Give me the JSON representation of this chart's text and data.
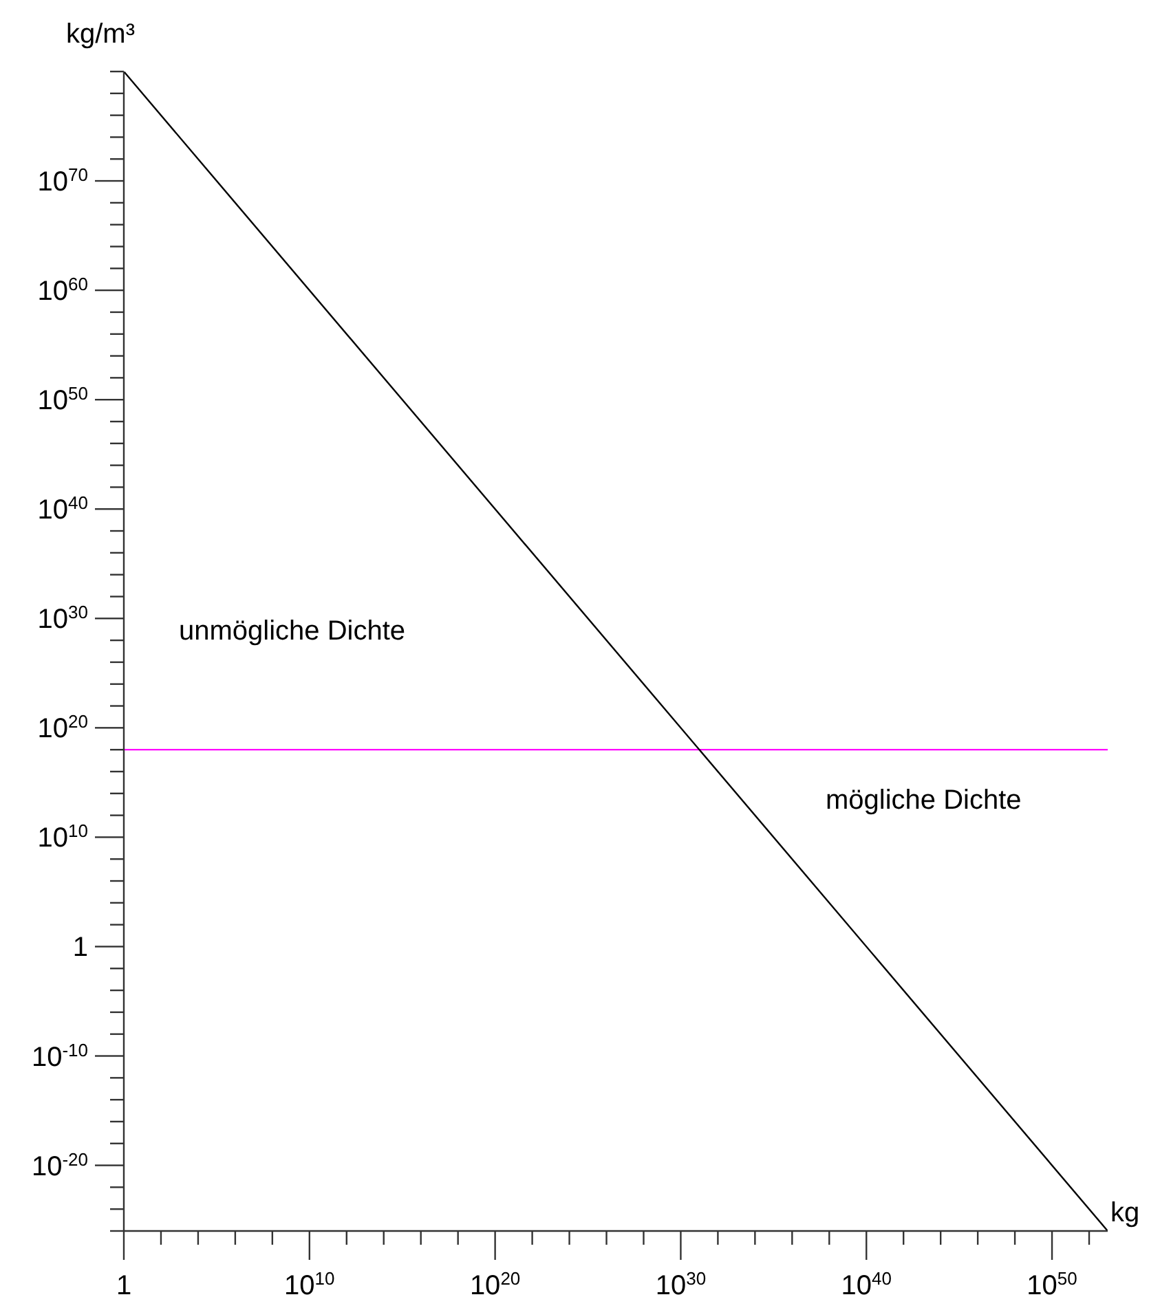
{
  "chart_data": {
    "type": "line",
    "xlabel": "kg",
    "ylabel": "kg/m³",
    "log": "xy",
    "grid": false,
    "legend": false,
    "marker": "none",
    "line_style": "solid",
    "series": [
      {
        "color": "#000000",
        "x": [
          1,
          1e+53
        ],
        "values": [
          1e+80,
          1e-26
        ]
      }
    ],
    "xlim": [
      1,
      1e+53
    ],
    "xticks": [
      {
        "value": 1,
        "label": "1"
      },
      {
        "value": 100.0,
        "label": null
      },
      {
        "value": 10000.0,
        "label": null
      },
      {
        "value": 1000000.0,
        "label": null
      },
      {
        "value": 100000000.0,
        "label": null
      },
      {
        "value": 10000000000.0,
        "label": "10$^{10}$"
      },
      {
        "value": 1000000000000.0,
        "label": null
      },
      {
        "value": 100000000000000.0,
        "label": null
      },
      {
        "value": 1e+16,
        "label": null
      },
      {
        "value": 1e+18,
        "label": null
      },
      {
        "value": 1e+20,
        "label": "10$^{20}$"
      },
      {
        "value": 1e+22,
        "label": null
      },
      {
        "value": 1e+24,
        "label": null
      },
      {
        "value": 1e+26,
        "label": null
      },
      {
        "value": 1e+28,
        "label": null
      },
      {
        "value": 1e+30,
        "label": "10$^{30}$"
      },
      {
        "value": 1e+32,
        "label": null
      },
      {
        "value": 1e+34,
        "label": null
      },
      {
        "value": 1e+36,
        "label": null
      },
      {
        "value": 1e+38,
        "label": null
      },
      {
        "value": 1e+40,
        "label": "10$^{40}$"
      },
      {
        "value": 1e+42,
        "label": null
      },
      {
        "value": 1e+44,
        "label": null
      },
      {
        "value": 1e+46,
        "label": null
      },
      {
        "value": 1e+48,
        "label": null
      },
      {
        "value": 1e+50,
        "label": "10$^{50}$"
      },
      {
        "value": 1e+52,
        "label": null
      }
    ],
    "ylim": [
      1e-26,
      1e+80
    ],
    "yticks": [
      {
        "value": 1e-26,
        "label": null
      },
      {
        "value": 1e-24,
        "label": null
      },
      {
        "value": 1e-22,
        "label": null
      },
      {
        "value": 1e-20,
        "label": "10$^{-20}$"
      },
      {
        "value": 1e-18,
        "label": null
      },
      {
        "value": 1e-16,
        "label": null
      },
      {
        "value": 1e-14,
        "label": null
      },
      {
        "value": 1e-12,
        "label": null
      },
      {
        "value": 1e-10,
        "label": "10$^{-10}$"
      },
      {
        "value": 1e-08,
        "label": null
      },
      {
        "value": 1e-06,
        "label": null
      },
      {
        "value": 0.0001,
        "label": null
      },
      {
        "value": 0.01,
        "label": null
      },
      {
        "value": 1,
        "label": "1"
      },
      {
        "value": 100.0,
        "label": null
      },
      {
        "value": 10000.0,
        "label": null
      },
      {
        "value": 1000000.0,
        "label": null
      },
      {
        "value": 100000000.0,
        "label": null
      },
      {
        "value": 10000000000.0,
        "label": "10$^{10}$"
      },
      {
        "value": 1000000000000.0,
        "label": null
      },
      {
        "value": 100000000000000.0,
        "label": null
      },
      {
        "value": 1e+16,
        "label": null
      },
      {
        "value": 1e+18,
        "label": null
      },
      {
        "value": 1e+20,
        "label": "10$^{20}$"
      },
      {
        "value": 1e+22,
        "label": null
      },
      {
        "value": 1e+24,
        "label": null
      },
      {
        "value": 1e+26,
        "label": null
      },
      {
        "value": 1e+28,
        "label": null
      },
      {
        "value": 1e+30,
        "label": "10$^{30}$"
      },
      {
        "value": 1e+32,
        "label": null
      },
      {
        "value": 1e+34,
        "label": null
      },
      {
        "value": 1e+36,
        "label": null
      },
      {
        "value": 1e+38,
        "label": null
      },
      {
        "value": 1e+40,
        "label": "10$^{40}$"
      },
      {
        "value": 1e+42,
        "label": null
      },
      {
        "value": 1e+44,
        "label": null
      },
      {
        "value": 1e+46,
        "label": null
      },
      {
        "value": 1e+48,
        "label": null
      },
      {
        "value": 1e+50,
        "label": "10$^{50}$"
      },
      {
        "value": 1e+52,
        "label": null
      },
      {
        "value": 1e+54,
        "label": null
      },
      {
        "value": 1e+56,
        "label": null
      },
      {
        "value": 1e+58,
        "label": null
      },
      {
        "value": 1e+60,
        "label": "10$^{60}$"
      },
      {
        "value": 1e+62,
        "label": null
      },
      {
        "value": 1e+64,
        "label": null
      },
      {
        "value": 1e+66,
        "label": null
      },
      {
        "value": 1e+68,
        "label": null
      },
      {
        "value": 1e+70,
        "label": "10$^{70}$"
      },
      {
        "value": 1e+72,
        "label": null
      },
      {
        "value": 1e+74,
        "label": null
      },
      {
        "value": 1e+76,
        "label": null
      },
      {
        "value": 1e+78,
        "label": null
      },
      {
        "value": 1e+80,
        "label": null
      }
    ],
    "ref_lines": [
      {
        "axis": "y",
        "value": 1e+18,
        "color": "#ff00ff"
      }
    ],
    "annotations": [
      "unmögliche Dichte",
      "mögliche Dichte"
    ]
  }
}
